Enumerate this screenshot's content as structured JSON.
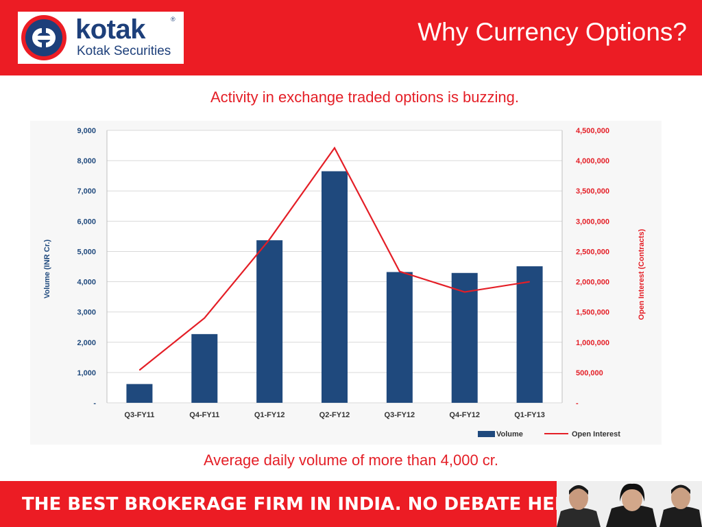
{
  "header": {
    "logo_word": "kotak",
    "logo_reg": "®",
    "logo_subtitle": "Kotak Securities",
    "title": "Why Currency Options?"
  },
  "subtitle": "Activity in exchange traded options is buzzing.",
  "footnote": "Average daily volume of more than 4,000 cr.",
  "footer": {
    "tagline": "THE BEST BROKERAGE FIRM IN INDIA. NO DEBATE HERE."
  },
  "colors": {
    "brand_red": "#ec1c24",
    "brand_blue": "#1d3f7a",
    "bar_blue": "#1f497d",
    "line_red": "#e41e26"
  },
  "chart_data": {
    "type": "bar",
    "categories": [
      "Q3-FY11",
      "Q4-FY11",
      "Q1-FY12",
      "Q2-FY12",
      "Q3-FY12",
      "Q4-FY12",
      "Q1-FY13"
    ],
    "series": [
      {
        "name": "Volume",
        "type": "bar",
        "axis": "left",
        "values": [
          620,
          2270,
          5370,
          7650,
          4320,
          4290,
          4510
        ]
      },
      {
        "name": "Open Interest",
        "type": "line",
        "axis": "right",
        "values": [
          540000,
          1400000,
          2700000,
          4210000,
          2170000,
          1830000,
          2000000
        ]
      }
    ],
    "ylabel": "Volume (INR Cr.)",
    "y2label": "Open Interest (Contracts)",
    "ylim": [
      0,
      9000
    ],
    "y2lim": [
      0,
      4500000
    ],
    "yticks": [
      "-",
      "1,000",
      "2,000",
      "3,000",
      "4,000",
      "5,000",
      "6,000",
      "7,000",
      "8,000",
      "9,000"
    ],
    "y2ticks": [
      "-",
      "500,000",
      "1,000,000",
      "1,500,000",
      "2,000,000",
      "2,500,000",
      "3,000,000",
      "3,500,000",
      "4,000,000",
      "4,500,000"
    ],
    "grid": true,
    "legend_position": "bottom-right"
  }
}
